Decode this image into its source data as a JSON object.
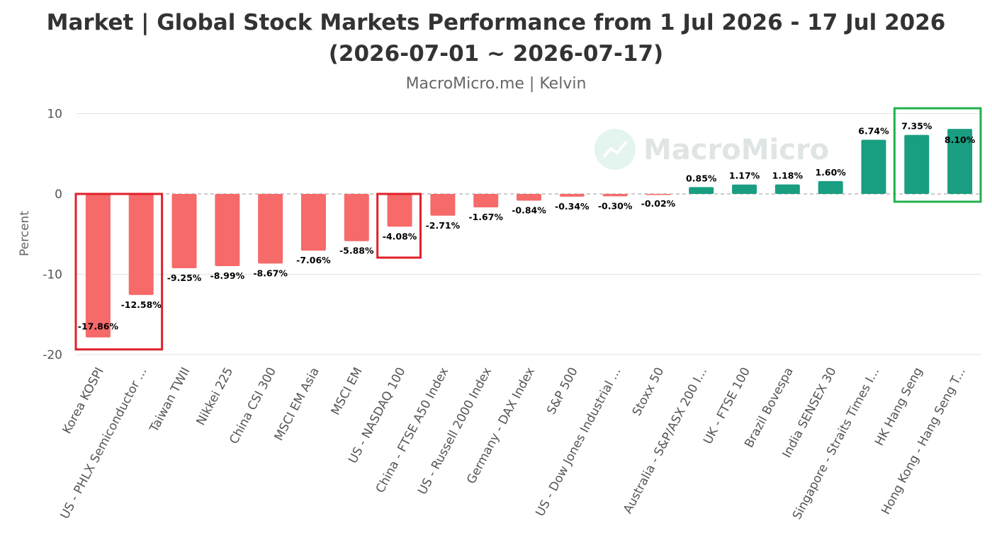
{
  "chart_data": {
    "type": "bar",
    "title_line1": "Market | Global Stock Markets Performance from 1 Jul 2026 - 17 Jul 2026",
    "title_line2": "(2026-07-01 ~ 2026-07-17)",
    "subtitle": "MacroMicro.me | Kelvin",
    "watermark": "MacroMicro",
    "ylabel": "Percent",
    "xlabel": "",
    "ylim": [
      -20,
      10
    ],
    "yticks": [
      "10",
      "0",
      "-10",
      "-20"
    ],
    "grid": true,
    "categories": [
      "Korea KOSPI",
      "US - PHLX Semiconductor ...",
      "Taiwan TWII",
      "Nikkei 225",
      "China CSI 300",
      "MSCI EM Asia",
      "MSCI EM",
      "US - NASDAQ 100",
      "China - FTSE A50 Index",
      "US - Russell 2000 Index",
      "Germany - DAX Index",
      "S&P 500",
      "US - Dow Jones Industrial ...",
      "Stoxx 50",
      "Australia - S&P/ASX 200 I...",
      "UK - FTSE 100",
      "Brazil Bovespa",
      "India SENSEX 30",
      "Singapore - Straits Times I...",
      "HK Hang Seng",
      "Hong Kong - Hang Seng T..."
    ],
    "values": [
      -17.86,
      -12.58,
      -9.25,
      -8.99,
      -8.67,
      -7.06,
      -5.88,
      -4.08,
      -2.71,
      -1.67,
      -0.84,
      -0.34,
      -0.3,
      -0.02,
      0.85,
      1.17,
      1.18,
      1.6,
      6.74,
      7.35,
      8.1
    ],
    "data_labels": [
      "-17.86%",
      "-12.58%",
      "-9.25%",
      "-8.99%",
      "-8.67%",
      "-7.06%",
      "-5.88%",
      "-4.08%",
      "-2.71%",
      "-1.67%",
      "-0.84%",
      "-0.34%",
      "-0.30%",
      "-0.02%",
      "0.85%",
      "1.17%",
      "1.18%",
      "1.60%",
      "6.74%",
      "7.35%",
      "8.10%"
    ],
    "colors": {
      "negative": "#f66a6a",
      "positive": "#1a9e82",
      "highlight_negative": "#e0202a",
      "highlight_positive": "#22b14c"
    },
    "highlights": [
      {
        "from": 0,
        "to": 1,
        "color": "negative"
      },
      {
        "from": 7,
        "to": 7,
        "color": "negative"
      },
      {
        "from": 19,
        "to": 20,
        "color": "positive"
      }
    ]
  }
}
